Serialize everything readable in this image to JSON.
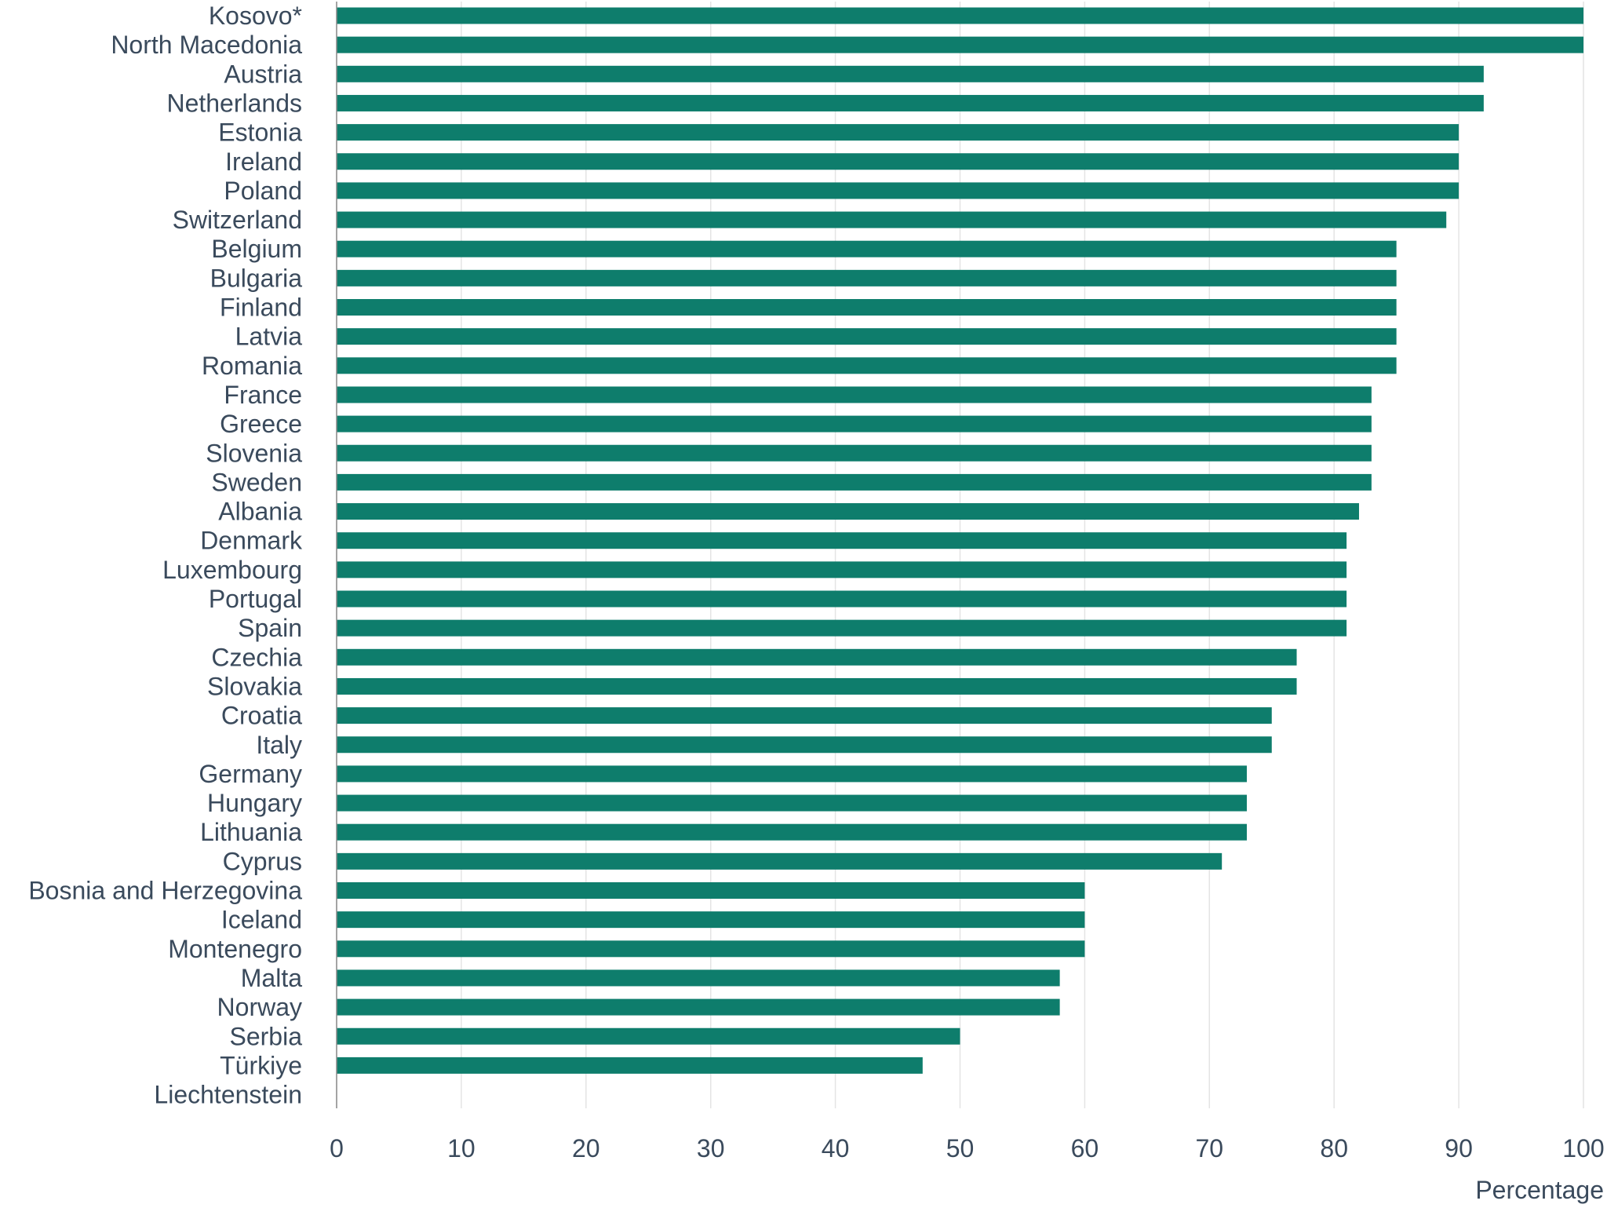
{
  "chart_data": {
    "type": "bar",
    "orientation": "horizontal",
    "categories": [
      "Kosovo*",
      "North Macedonia",
      "Austria",
      "Netherlands",
      "Estonia",
      "Ireland",
      "Poland",
      "Switzerland",
      "Belgium",
      "Bulgaria",
      "Finland",
      "Latvia",
      "Romania",
      "France",
      "Greece",
      "Slovenia",
      "Sweden",
      "Albania",
      "Denmark",
      "Luxembourg",
      "Portugal",
      "Spain",
      "Czechia",
      "Slovakia",
      "Croatia",
      "Italy",
      "Germany",
      "Hungary",
      "Lithuania",
      "Cyprus",
      "Bosnia and Herzegovina",
      "Iceland",
      "Montenegro",
      "Malta",
      "Norway",
      "Serbia",
      "Türkiye",
      "Liechtenstein"
    ],
    "values": [
      100,
      100,
      92,
      92,
      90,
      90,
      90,
      89,
      85,
      85,
      85,
      85,
      85,
      83,
      83,
      83,
      83,
      82,
      81,
      81,
      81,
      81,
      77,
      77,
      75,
      75,
      73,
      73,
      73,
      71,
      60,
      60,
      60,
      58,
      58,
      50,
      47,
      null
    ],
    "xlabel": "Percentage",
    "xlim": [
      0,
      100
    ],
    "xticks": [
      0,
      10,
      20,
      30,
      40,
      50,
      60,
      70,
      80,
      90,
      100
    ],
    "grid": true,
    "bar_color": "#0e7d6c",
    "legend": "none"
  }
}
